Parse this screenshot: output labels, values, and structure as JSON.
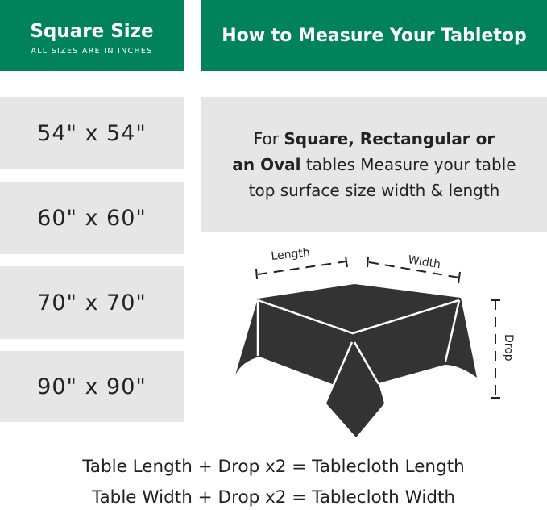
{
  "size_panel": {
    "title": "Square Size",
    "subtitle": "ALL SIZES ARE IN INCHES",
    "sizes": [
      "54\" x 54\"",
      "60\" x 60\"",
      "70\" x 70\"",
      "90\" x 90\""
    ]
  },
  "measure_panel": {
    "title": "How to Measure Your Tabletop",
    "instruction": {
      "prefix": "For ",
      "bold1": "Square, Rectangular or",
      "bold2": "an Oval",
      "rest1": " tables Measure your table",
      "rest2": "top surface size width & length"
    },
    "diagram_labels": {
      "length": "Length",
      "width": "Width",
      "drop": "Drop"
    }
  },
  "formulas": [
    "Table Length + Drop x2 = Tablecloth Length",
    "Table Width + Drop x2 = Tablecloth Width"
  ],
  "colors": {
    "header_green": "#00825b",
    "panel_grey": "#e6e6e6",
    "cloth": "#333333"
  }
}
